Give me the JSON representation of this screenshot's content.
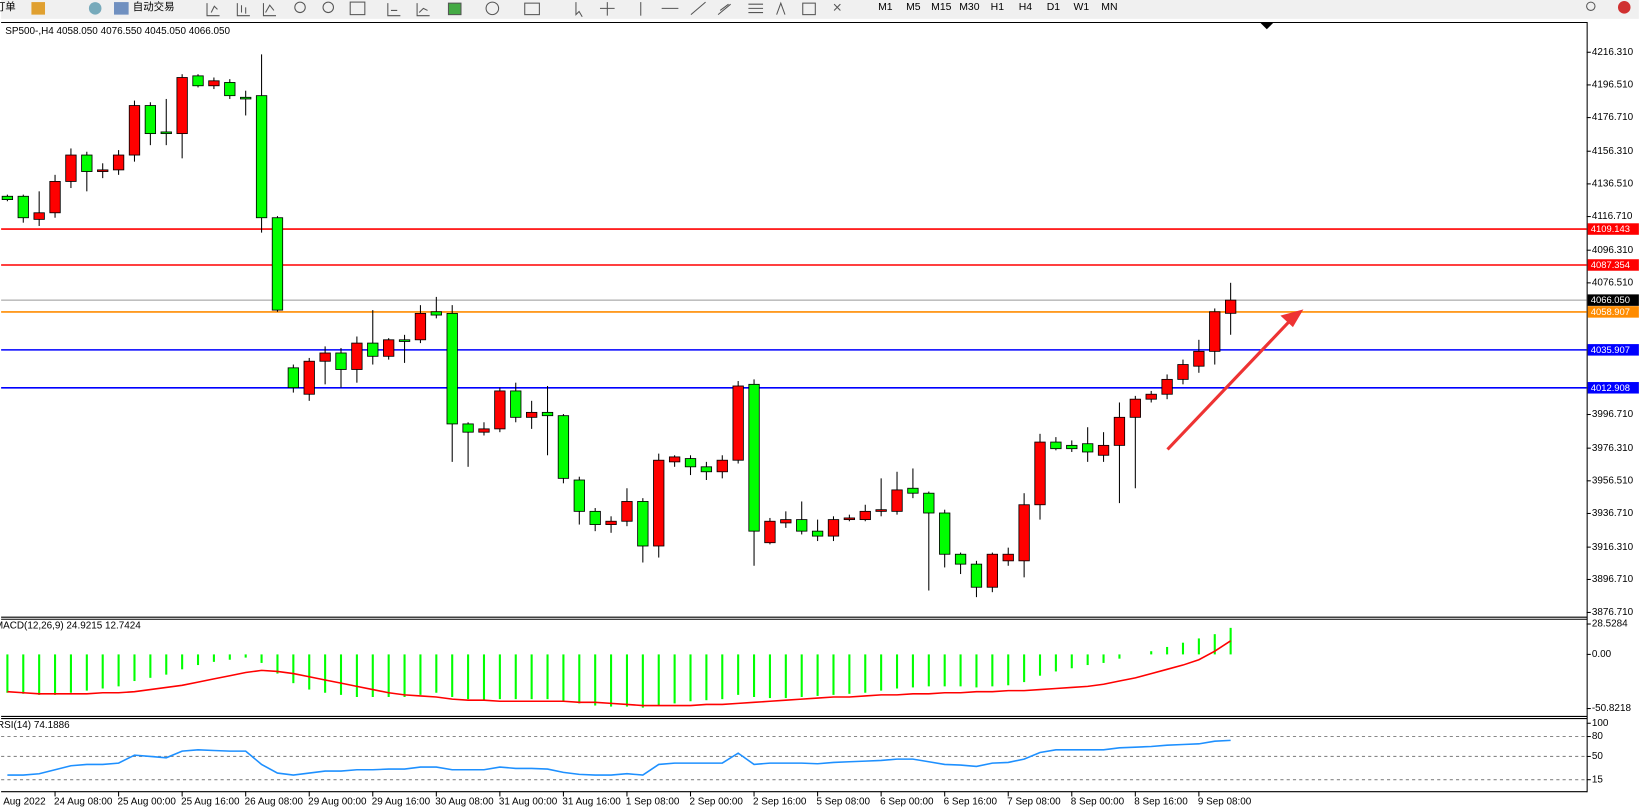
{
  "toolbar": {
    "items": [
      "订单",
      "自动交易"
    ],
    "timeframes": [
      "M1",
      "M5",
      "M15",
      "M30",
      "H1",
      "H4",
      "D1",
      "W1",
      "MN"
    ]
  },
  "chart_data": [
    {
      "type": "candlestick",
      "title": "SP500-,H4  4058.050 4076.550 4045.050 4066.050",
      "x_start_label": "Aug 2022",
      "categories": [
        null,
        null,
        null,
        "24 Aug 08:00",
        null,
        null,
        null,
        "25 Aug 00:00",
        null,
        null,
        null,
        "25 Aug 16:00",
        null,
        null,
        null,
        "26 Aug 08:00",
        null,
        null,
        null,
        "29 Aug 00:00",
        null,
        null,
        null,
        "29 Aug 16:00",
        null,
        null,
        null,
        "30 Aug 08:00",
        null,
        null,
        null,
        "31 Aug 00:00",
        null,
        null,
        null,
        "31 Aug 16:00",
        null,
        null,
        null,
        "1 Sep 08:00",
        null,
        null,
        null,
        "2 Sep 00:00",
        null,
        null,
        null,
        "2 Sep 16:00",
        null,
        null,
        null,
        "5 Sep 08:00",
        null,
        null,
        null,
        "6 Sep 00:00",
        null,
        null,
        null,
        "6 Sep 16:00",
        null,
        null,
        null,
        "7 Sep 08:00",
        null,
        null,
        null,
        "8 Sep 00:00",
        null,
        null,
        null,
        "8 Sep 16:00",
        null,
        null,
        null,
        "9 Sep 08:00",
        null,
        null
      ],
      "open": [
        4129,
        4129,
        4115,
        4119,
        4138,
        4154,
        4144,
        4145,
        4154,
        4184,
        4168,
        4167,
        4202,
        4196,
        4198,
        4189,
        4190,
        4116,
        4025,
        4009,
        4029,
        4034,
        4024,
        4040,
        4032,
        4042,
        4042,
        4059,
        4058,
        3991,
        3986,
        3988,
        4011,
        3995,
        3998,
        3996,
        3957,
        3938,
        3930,
        3932,
        3944,
        3917,
        3968,
        3970,
        3965,
        3962,
        3969,
        4015,
        3919,
        3931,
        3933,
        3926,
        3923,
        3933,
        3933,
        3938,
        3938,
        3952,
        3949,
        3937,
        3912,
        3906,
        3892,
        3908,
        3908,
        3942,
        3980,
        3978,
        3979,
        3972,
        3978,
        3995,
        4006,
        4009,
        4018,
        4026,
        4035,
        4058.05
      ],
      "high": [
        4130,
        4130,
        4132,
        4142,
        4158,
        4156,
        4149,
        4157,
        4187,
        4186,
        4188,
        4203,
        4203,
        4201,
        4200,
        4193,
        4215,
        4117,
        4027,
        4031,
        4038,
        4037,
        4044,
        4060,
        4043,
        4045,
        4063,
        4068,
        4063,
        3992,
        3992,
        4013,
        4016,
        4005,
        4014,
        3997,
        3959,
        3940,
        3935,
        3952,
        3946,
        3973,
        3972,
        3972,
        3968,
        3972,
        4017,
        4018,
        3934,
        3938,
        3944,
        3933,
        3935,
        3936,
        3942,
        3958,
        3962,
        3964,
        3950,
        3939,
        3913,
        3908,
        3913,
        3916,
        3949,
        3985,
        3983,
        3981,
        3989,
        3986,
        4004,
        4008,
        4011,
        4021,
        4030,
        4042,
        4061,
        4076.55
      ],
      "low": [
        4126,
        4113,
        4111,
        4116,
        4134,
        4132,
        4140,
        4142,
        4150,
        4160,
        4160,
        4152,
        4195,
        4194,
        4188,
        4178,
        4107,
        4059,
        4010,
        4005,
        4015,
        4013,
        4016,
        4027,
        4030,
        4028,
        4040,
        4055,
        3968,
        3965,
        3984,
        3986,
        3992,
        3988,
        3972,
        3955,
        3930,
        3926,
        3925,
        3929,
        3907,
        3910,
        3965,
        3960,
        3957,
        3958,
        3967,
        3905,
        3918,
        3928,
        3924,
        3920,
        3920,
        3932,
        3932,
        3935,
        3936,
        3946,
        3890,
        3904,
        3900,
        3886,
        3889,
        3905,
        3898,
        3933,
        3975,
        3974,
        3968,
        3968,
        3943,
        3952,
        4004,
        4006,
        4015,
        4022,
        4027,
        4045.05
      ],
      "close": [
        4127,
        4116,
        4119,
        4138,
        4154,
        4144,
        4145,
        4154,
        4184,
        4167,
        4167,
        4201,
        4196,
        4199,
        4190,
        4188,
        4116,
        4060,
        4013,
        4029,
        4034,
        4024,
        4040,
        4032,
        4042,
        4041,
        4058,
        4057,
        3991,
        3986,
        3988,
        4011,
        3995,
        3998,
        3996,
        3958,
        3938,
        3930,
        3932,
        3944,
        3917,
        3969,
        3971,
        3965,
        3962,
        3969,
        4014,
        3926,
        3932,
        3933,
        3926,
        3923,
        3933,
        3934,
        3938,
        3939,
        3951,
        3949,
        3937,
        3912,
        3906,
        3892,
        3912,
        3912,
        3942,
        3980,
        3976,
        3976,
        3974,
        3978,
        3995,
        4006,
        4009,
        4018,
        4027,
        4035,
        4059,
        4066.05
      ],
      "up_color": "#ff0000",
      "down_color": "#00ff00",
      "ylim": [
        3874.17,
        4234.05
      ],
      "yticks": [
        {
          "value": 4216.31,
          "label": "4216.310"
        },
        {
          "value": 4196.51,
          "label": "4196.510"
        },
        {
          "value": 4176.71,
          "label": "4176.710"
        },
        {
          "value": 4156.31,
          "label": "4156.310"
        },
        {
          "value": 4136.51,
          "label": "4136.510"
        },
        {
          "value": 4116.71,
          "label": "4116.710"
        },
        {
          "value": 4096.31,
          "label": "4096.310"
        },
        {
          "value": 4076.51,
          "label": "4076.510"
        },
        {
          "value": 3996.71,
          "label": "3996.710"
        },
        {
          "value": 3976.31,
          "label": "3976.310"
        },
        {
          "value": 3956.51,
          "label": "3956.510"
        },
        {
          "value": 3936.71,
          "label": "3936.710"
        },
        {
          "value": 3916.31,
          "label": "3916.310"
        },
        {
          "value": 3896.71,
          "label": "3896.710"
        },
        {
          "value": 3876.71,
          "label": "3876.710"
        }
      ],
      "hlines": [
        {
          "value": 4109.143,
          "color": "#ff0000"
        },
        {
          "value": 4087.354,
          "color": "#ff0000"
        },
        {
          "value": 4066.05,
          "label": "4066.050",
          "color": "#000000"
        },
        {
          "value": 4058.907,
          "color": "#ff8c00"
        },
        {
          "value": 4035.907,
          "color": "#0000ff"
        },
        {
          "value": 4012.908,
          "color": "#0000ff"
        }
      ]
    },
    {
      "type": "macd",
      "title": "MACD(12,26,9) 24.9215 12.7424",
      "values": [
        -36,
        -37,
        -38,
        -38,
        -36,
        -34,
        -32,
        -30,
        -25,
        -22,
        -19,
        -14,
        -10,
        -7,
        -5,
        -3,
        -8,
        -18,
        -27,
        -33,
        -36,
        -38,
        -40,
        -40,
        -40,
        -40,
        -38,
        -36,
        -40,
        -42,
        -43,
        -42,
        -42,
        -42,
        -42,
        -44,
        -46,
        -48,
        -49,
        -49,
        -50,
        -48,
        -46,
        -44,
        -43,
        -42,
        -38,
        -40,
        -41,
        -41,
        -40,
        -39,
        -38,
        -37,
        -36,
        -34,
        -32,
        -31,
        -30,
        -30,
        -30,
        -31,
        -30,
        -29,
        -26,
        -20,
        -16,
        -13,
        -10,
        -8,
        -4,
        0,
        3,
        7,
        11,
        15,
        19,
        24.9215
      ],
      "signal": [
        -35,
        -36,
        -37,
        -37,
        -37,
        -37,
        -36,
        -36,
        -35,
        -33,
        -31,
        -29,
        -26,
        -23,
        -20,
        -17,
        -15,
        -16,
        -18,
        -21,
        -24,
        -27,
        -30,
        -33,
        -36,
        -38,
        -39,
        -40,
        -42,
        -43,
        -43,
        -44,
        -44,
        -44,
        -44,
        -44,
        -45,
        -45,
        -46,
        -47,
        -48,
        -48,
        -48,
        -48,
        -47,
        -47,
        -46,
        -45,
        -44,
        -43,
        -42,
        -41,
        -40,
        -40,
        -39,
        -38,
        -38,
        -37,
        -37,
        -36,
        -36,
        -35,
        -35,
        -34,
        -34,
        -33,
        -32,
        -31,
        -30,
        -28,
        -25,
        -22,
        -18,
        -14,
        -10,
        -5,
        3,
        12.7424
      ],
      "color": "#00ff00",
      "signal_color": "#ff0000",
      "ylim": [
        -57.77,
        33.49
      ],
      "yticks": [
        28.5284,
        {
          "value": 0,
          "label": "0.00"
        },
        -50.8218
      ]
    },
    {
      "type": "line",
      "title": "RSI(14) 74.1886",
      "values": [
        22,
        22,
        24,
        30,
        36,
        38,
        38,
        40,
        52,
        50,
        48,
        58,
        60,
        59,
        58,
        58,
        38,
        25,
        22,
        25,
        28,
        28,
        30,
        30,
        31,
        31,
        34,
        34,
        30,
        30,
        30,
        34,
        32,
        32,
        31,
        26,
        23,
        22,
        22,
        24,
        22,
        38,
        40,
        40,
        40,
        40,
        55,
        38,
        40,
        40,
        40,
        39,
        41,
        42,
        43,
        44,
        46,
        46,
        42,
        38,
        37,
        35,
        40,
        41,
        46,
        56,
        60,
        60,
        60,
        60,
        63,
        64,
        65,
        67,
        68,
        69,
        73,
        74.1886
      ],
      "color": "#1e90ff",
      "ylim": [
        -2.3,
        106.3
      ],
      "yticks": [
        100,
        80,
        50,
        15
      ]
    }
  ]
}
